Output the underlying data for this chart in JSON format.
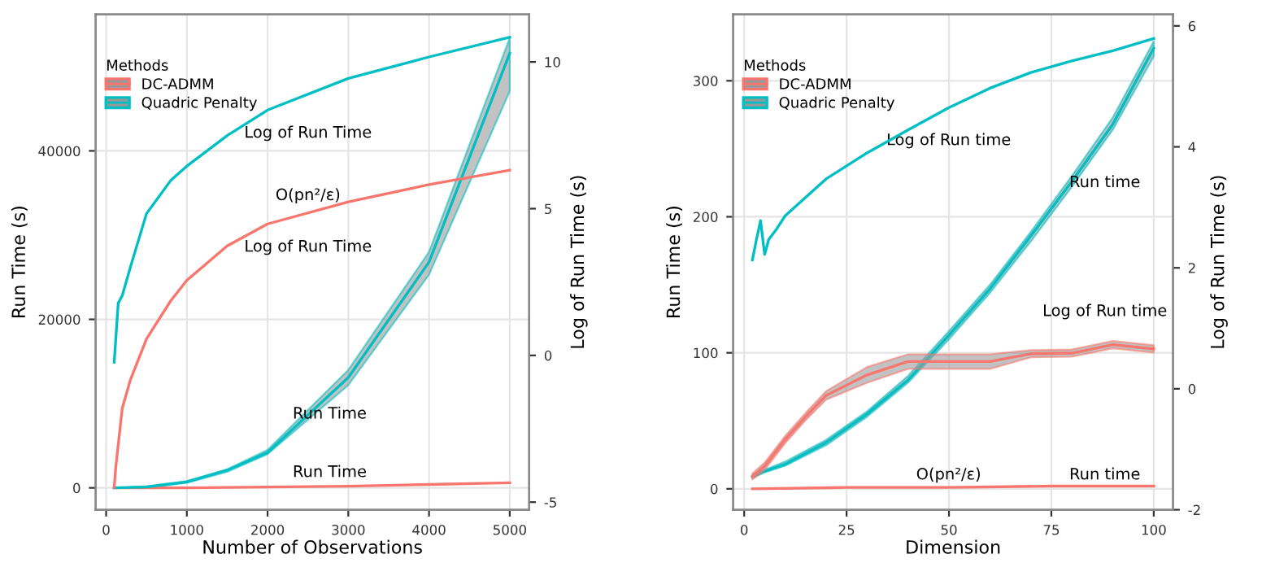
{
  "chart_data": [
    {
      "type": "line",
      "xlabel": "Number of Observations",
      "ylabel": "Run Time (s)",
      "y2label": "Log of Run Time (s)",
      "legend_title": "Methods",
      "legend": "top left",
      "grid": true,
      "xlim": [
        -130,
        5240
      ],
      "xticks": [
        0,
        1000,
        2000,
        3000,
        4000,
        5000
      ],
      "ylim": [
        -2600,
        56200
      ],
      "yticks": [
        0,
        20000,
        40000
      ],
      "y2lim": [
        -5.26,
        11.62
      ],
      "y2ticks": [
        -5,
        0,
        5,
        10
      ],
      "series": [
        {
          "name": "DC-ADMM",
          "color": "#f8766d",
          "axis": "y",
          "x": [
            100,
            1000,
            2000,
            3000,
            4000,
            5000
          ],
          "values": [
            0,
            0,
            100,
            200,
            400,
            600
          ]
        },
        {
          "name": "Quadric Penalty",
          "color": "#00bfc4",
          "axis": "y",
          "x": [
            100,
            500,
            1000,
            1500,
            2000,
            3000,
            4000,
            5000
          ],
          "values": [
            0,
            100,
            700,
            2100,
            4200,
            13100,
            26800,
            51600
          ],
          "lower": [
            0,
            0,
            600,
            1900,
            4000,
            12200,
            25300,
            47100
          ],
          "upper": [
            0,
            200,
            800,
            2200,
            4500,
            14000,
            28000,
            53400
          ]
        },
        {
          "color": "#f8766d",
          "axis": "y2",
          "x": [
            100,
            120,
            200,
            300,
            500,
            800,
            1000,
            1500,
            2000,
            3000,
            4000,
            5000
          ],
          "values": [
            -4.5,
            -3.8,
            -1.8,
            -0.84,
            0.56,
            1.86,
            2.56,
            3.73,
            4.48,
            5.23,
            5.82,
            6.31
          ]
        },
        {
          "color": "#00bfc4",
          "axis": "y2",
          "x": [
            100,
            150,
            200,
            300,
            500,
            800,
            1000,
            1500,
            2000,
            3000,
            4000,
            5000
          ],
          "values": [
            -0.23,
            1.78,
            2.04,
            3.0,
            4.83,
            5.96,
            6.45,
            7.49,
            8.36,
            9.44,
            10.17,
            10.84
          ]
        }
      ],
      "annotations": [
        "Log of Run Time",
        "O(pn²/ε)",
        "Log of Run Time",
        "Run Time",
        "Run Time"
      ]
    },
    {
      "type": "line",
      "xlabel": "Dimension",
      "ylabel": "Run Time (s)",
      "y2label": "Log of Run Time (s)",
      "legend_title": "Methods",
      "legend": "top left",
      "grid": true,
      "xlim": [
        -2.7,
        104.7
      ],
      "xticks": [
        0,
        25,
        50,
        75,
        100
      ],
      "ylim": [
        -15.4,
        348.8
      ],
      "yticks": [
        0,
        100,
        200,
        300
      ],
      "y2lim": [
        -2.0,
        6.19
      ],
      "y2ticks": [
        -2,
        0,
        2,
        4,
        6
      ],
      "series": [
        {
          "name": "DC-ADMM",
          "color": "#f8766d",
          "axis": "y",
          "x": [
            2,
            25,
            50,
            75,
            100
          ],
          "values": [
            0,
            1,
            1,
            2,
            2
          ]
        },
        {
          "name": "Quadric Penalty",
          "color": "#00bfc4",
          "axis": "y",
          "x": [
            2,
            5,
            10,
            20,
            30,
            40,
            50,
            60,
            70,
            80,
            90,
            100
          ],
          "values": [
            9,
            13,
            18,
            34,
            55,
            80,
            113,
            147,
            186,
            226,
            268,
            324
          ],
          "lower": [
            8,
            12,
            17,
            32,
            53,
            78,
            110,
            144,
            182,
            222,
            264,
            318
          ],
          "upper": [
            10,
            14,
            20,
            36,
            57,
            83,
            116,
            150,
            189,
            230,
            273,
            329
          ]
        },
        {
          "color": "#f8766d",
          "axis": "y2",
          "x": [
            2,
            5,
            10,
            15,
            20,
            30,
            40,
            50,
            60,
            70,
            80,
            90,
            100
          ],
          "values": [
            -1.45,
            -1.28,
            -0.84,
            -0.46,
            -0.11,
            0.23,
            0.45,
            0.45,
            0.45,
            0.58,
            0.59,
            0.73,
            0.66
          ],
          "lower": [
            -1.5,
            -1.34,
            -0.9,
            -0.52,
            -0.18,
            0.1,
            0.33,
            0.33,
            0.33,
            0.52,
            0.53,
            0.67,
            0.6
          ],
          "upper": [
            -1.4,
            -1.22,
            -0.78,
            -0.4,
            -0.04,
            0.36,
            0.57,
            0.57,
            0.57,
            0.64,
            0.65,
            0.79,
            0.72
          ]
        },
        {
          "color": "#00bfc4",
          "axis": "y2",
          "x": [
            2,
            3,
            4,
            5,
            6,
            8,
            10,
            20,
            30,
            40,
            50,
            60,
            70,
            80,
            90,
            100
          ],
          "values": [
            2.13,
            2.47,
            2.78,
            2.22,
            2.47,
            2.65,
            2.86,
            3.47,
            3.9,
            4.28,
            4.65,
            4.97,
            5.23,
            5.42,
            5.59,
            5.79
          ]
        }
      ],
      "annotations": [
        "Log of Run time",
        "Run time",
        "Log of Run time",
        "O(pn²/ε)",
        "Run time"
      ]
    }
  ]
}
